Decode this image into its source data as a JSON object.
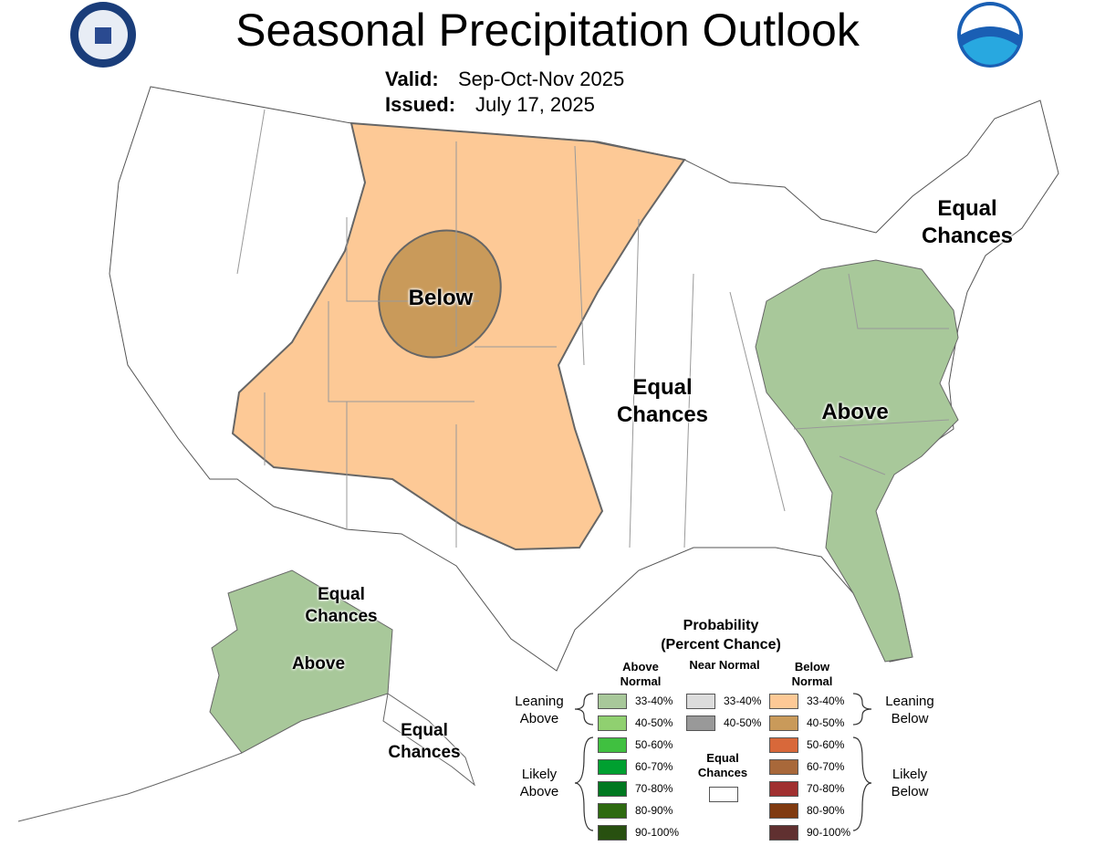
{
  "header": {
    "title": "Seasonal Precipitation Outlook",
    "valid_label": "Valid:",
    "valid": "Sep-Oct-Nov 2025",
    "issued_label": "Issued:",
    "issued": "July 17, 2025"
  },
  "map_labels": [
    {
      "text": "Below"
    },
    {
      "text": "Equal Chances"
    },
    {
      "text": "Above"
    },
    {
      "text": "Equal Chances"
    },
    {
      "text": "Equal Chances"
    },
    {
      "text": "Above"
    },
    {
      "text": "Equal Chances"
    }
  ],
  "legend": {
    "title": "Probability",
    "subtitle": "(Percent Chance)",
    "columns": [
      {
        "header": "Above Normal",
        "items": [
          {
            "label": "33-40%",
            "color": "#a8c89a"
          },
          {
            "label": "40-50%",
            "color": "#90d070"
          },
          {
            "label": "50-60%",
            "color": "#40c040"
          },
          {
            "label": "60-70%",
            "color": "#00a030"
          },
          {
            "label": "70-80%",
            "color": "#007820"
          },
          {
            "label": "80-90%",
            "color": "#2e6a10"
          },
          {
            "label": "90-100%",
            "color": "#285010"
          }
        ]
      },
      {
        "header": "Near Normal",
        "items": [
          {
            "label": "33-40%",
            "color": "#dcdcdc"
          },
          {
            "label": "40-50%",
            "color": "#999999"
          }
        ]
      },
      {
        "header": "Below Normal",
        "items": [
          {
            "label": "33-40%",
            "color": "#fdc996"
          },
          {
            "label": "40-50%",
            "color": "#c99a5a"
          },
          {
            "label": "50-60%",
            "color": "#d8683a"
          },
          {
            "label": "60-70%",
            "color": "#a8683a"
          },
          {
            "label": "70-80%",
            "color": "#a03030"
          },
          {
            "label": "80-90%",
            "color": "#803a10"
          },
          {
            "label": "90-100%",
            "color": "#603030"
          }
        ]
      }
    ],
    "groups": {
      "leaning_above": "Leaning Above",
      "likely_above": "Likely Above",
      "leaning_below": "Leaning Below",
      "likely_below": "Likely Below",
      "equal_chances": "Equal Chances"
    }
  }
}
